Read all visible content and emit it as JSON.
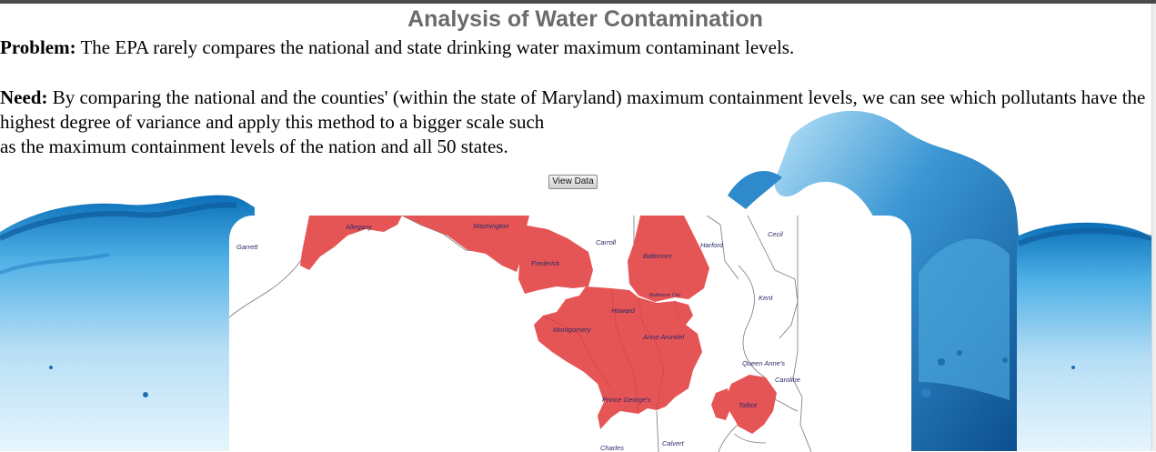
{
  "page": {
    "title": "Analysis of Water Contamination",
    "problem_label": "Problem:",
    "problem_text": " The EPA rarely compares the national and state drinking water maximum contaminant levels.",
    "need_label": "Need:",
    "need_text": " By comparing the national and the counties' (within the state of Maryland) maximum containment levels, we can see which pollutants have the highest degree of variance and apply this method to a bigger scale such\nas the maximum containment levels of the nation and all 50 states.",
    "view_button": "View Data"
  },
  "map": {
    "highlight_color": "#e65555",
    "counties": {
      "garrett": "Garrett",
      "allegany": "Allegany",
      "washington": "Washington",
      "frederick": "Frederick",
      "carroll": "Carroll",
      "baltimore": "Baltimore",
      "harford": "Harford",
      "cecil": "Cecil",
      "baltimore_city": "Baltimore City",
      "howard": "Howard",
      "kent": "Kent",
      "montgomery": "Montgomery",
      "anne_arundel": "Anne Arundel",
      "queen_annes": "Queen Anne's",
      "caroline": "Caroline",
      "talbot": "Talbot",
      "prince_georges": "Prince George's",
      "charles": "Charles",
      "calvert": "Calvert"
    }
  }
}
